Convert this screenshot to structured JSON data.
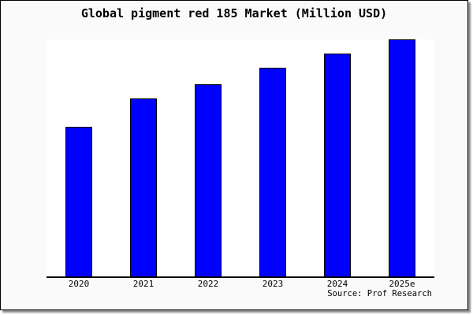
{
  "window": {
    "background": "#fafafa",
    "border_color": "#000000",
    "shadow_color": "#8f8f8f"
  },
  "chart_data": {
    "type": "bar",
    "title": "Global pigment red 185 Market (Million USD)",
    "categories": [
      "2020",
      "2021",
      "2022",
      "2023",
      "2024",
      "2025e"
    ],
    "values": [
      63,
      75,
      81,
      88,
      94,
      100
    ],
    "value_note": "no y-axis ticks or data labels shown; values are a relative index estimated from bar heights with 2025e = 100",
    "xlabel": "",
    "ylabel": "",
    "ylim": [
      0,
      100
    ],
    "grid": false,
    "legend": false,
    "bar_color": "#0000ff",
    "bar_border_color": "#000000",
    "axis_color": "#000000",
    "plot_background": "#ffffff",
    "source_note": "Source: Prof Research"
  }
}
